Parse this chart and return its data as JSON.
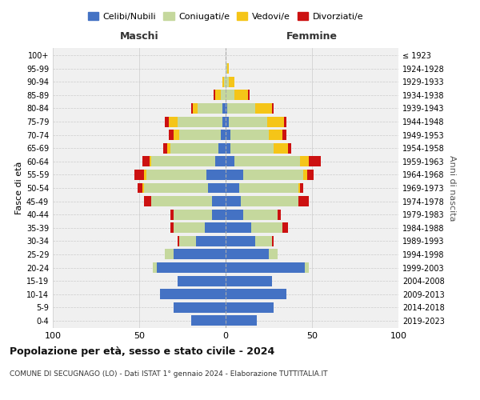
{
  "age_groups": [
    "0-4",
    "5-9",
    "10-14",
    "15-19",
    "20-24",
    "25-29",
    "30-34",
    "35-39",
    "40-44",
    "45-49",
    "50-54",
    "55-59",
    "60-64",
    "65-69",
    "70-74",
    "75-79",
    "80-84",
    "85-89",
    "90-94",
    "95-99",
    "100+"
  ],
  "birth_years": [
    "2019-2023",
    "2014-2018",
    "2009-2013",
    "2004-2008",
    "1999-2003",
    "1994-1998",
    "1989-1993",
    "1984-1988",
    "1979-1983",
    "1974-1978",
    "1969-1973",
    "1964-1968",
    "1959-1963",
    "1954-1958",
    "1949-1953",
    "1944-1948",
    "1939-1943",
    "1934-1938",
    "1929-1933",
    "1924-1928",
    "≤ 1923"
  ],
  "male": {
    "celibi": [
      20,
      30,
      38,
      28,
      40,
      30,
      17,
      12,
      8,
      8,
      10,
      11,
      6,
      4,
      3,
      2,
      2,
      0,
      0,
      0,
      0
    ],
    "coniugati": [
      0,
      0,
      0,
      0,
      2,
      5,
      10,
      18,
      22,
      35,
      37,
      35,
      37,
      28,
      24,
      26,
      14,
      3,
      1,
      0,
      0
    ],
    "vedovi": [
      0,
      0,
      0,
      0,
      0,
      0,
      0,
      0,
      0,
      0,
      1,
      1,
      1,
      2,
      3,
      5,
      3,
      3,
      1,
      0,
      0
    ],
    "divorziati": [
      0,
      0,
      0,
      0,
      0,
      0,
      1,
      2,
      2,
      4,
      3,
      6,
      4,
      2,
      3,
      2,
      1,
      1,
      0,
      0,
      0
    ]
  },
  "female": {
    "nubili": [
      18,
      28,
      35,
      27,
      46,
      25,
      17,
      15,
      10,
      9,
      8,
      10,
      5,
      3,
      3,
      2,
      1,
      0,
      0,
      0,
      0
    ],
    "coniugate": [
      0,
      0,
      0,
      0,
      2,
      5,
      10,
      18,
      20,
      33,
      34,
      35,
      38,
      25,
      22,
      22,
      16,
      5,
      2,
      1,
      0
    ],
    "vedove": [
      0,
      0,
      0,
      0,
      0,
      0,
      0,
      0,
      0,
      0,
      1,
      2,
      5,
      8,
      8,
      10,
      10,
      8,
      3,
      1,
      0
    ],
    "divorziate": [
      0,
      0,
      0,
      0,
      0,
      0,
      1,
      3,
      2,
      6,
      2,
      4,
      7,
      2,
      2,
      1,
      1,
      1,
      0,
      0,
      0
    ]
  },
  "colors": {
    "celibi": "#4472C4",
    "coniugati": "#c5d89d",
    "vedovi": "#f5c518",
    "divorziati": "#cc1111"
  },
  "title": "Popolazione per età, sesso e stato civile - 2024",
  "subtitle": "COMUNE DI SECUGNAGO (LO) - Dati ISTAT 1° gennaio 2024 - Elaborazione TUTTITALIA.IT",
  "xlabel_left": "Maschi",
  "xlabel_right": "Femmine",
  "ylabel_left": "Fasce di età",
  "ylabel_right": "Anni di nascita",
  "xlim": 100,
  "legend_labels": [
    "Celibi/Nubili",
    "Coniugati/e",
    "Vedovi/e",
    "Divorziati/e"
  ],
  "bg_color": "#f0f0f0",
  "grid_color": "#cccccc"
}
